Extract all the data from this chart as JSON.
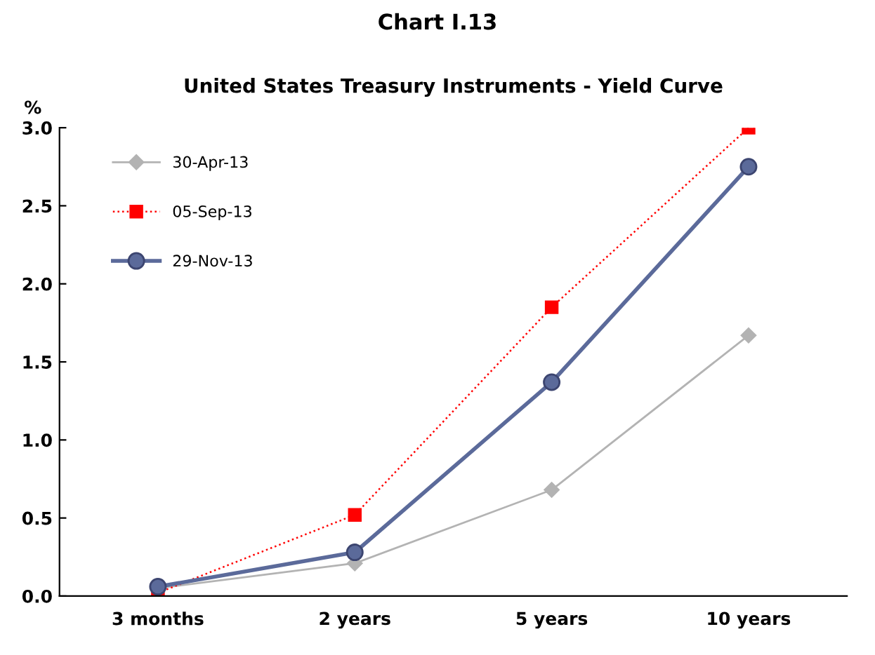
{
  "chart_data": {
    "type": "line",
    "title": "Chart I.13",
    "subtitle": "United States Treasury Instruments - Yield Curve",
    "ylabel": "%",
    "categories": [
      "3 months",
      "2 years",
      "5 years",
      "10 years"
    ],
    "series": [
      {
        "name": "30-Apr-13",
        "color": "#b3b3b3",
        "marker": "diamond",
        "line_style": "solid",
        "values": [
          0.05,
          0.21,
          0.68,
          1.67
        ]
      },
      {
        "name": "05-Sep-13",
        "color": "#ff0000",
        "marker": "square",
        "line_style": "dotted",
        "values": [
          0.02,
          0.52,
          1.85,
          3.0
        ]
      },
      {
        "name": "29-Nov-13",
        "color": "#5b6a9a",
        "marker": "circle",
        "line_style": "solid",
        "values": [
          0.06,
          0.28,
          1.37,
          2.75
        ]
      }
    ],
    "ylim": [
      0,
      3.0
    ],
    "yticks": [
      {
        "value": 0,
        "label": "0.0"
      },
      {
        "value": 0.5,
        "label": "0.5"
      },
      {
        "value": 1,
        "label": "1.0"
      },
      {
        "value": 1.5,
        "label": "1.5"
      },
      {
        "value": 2,
        "label": "2.0"
      },
      {
        "value": 2.5,
        "label": "2.5"
      },
      {
        "value": 3,
        "label": "3.0"
      }
    ],
    "grid": false,
    "legend": "top left"
  }
}
